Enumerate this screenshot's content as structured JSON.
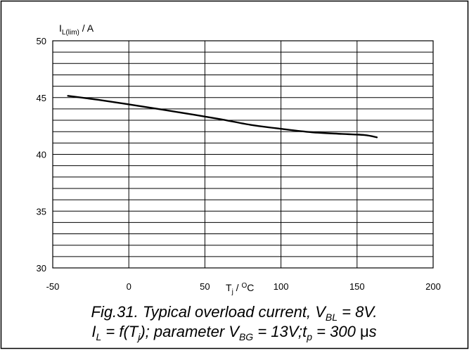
{
  "chart_data": {
    "type": "line",
    "title": "",
    "ylabel": {
      "main": "I",
      "sub": "L(lim)",
      "rest": " / A"
    },
    "xlabel": {
      "main": "T",
      "sub": "j",
      "mid": " / ",
      "sup": "O",
      "rest": "C"
    },
    "xlim": [
      -50,
      200
    ],
    "ylim": [
      30,
      50
    ],
    "x_ticks": [
      "-50",
      "0",
      "50",
      "100",
      "150",
      "200"
    ],
    "y_ticks": [
      "30",
      "35",
      "40",
      "45",
      "50"
    ],
    "x_grid_step": 50,
    "y_grid_step": 1,
    "grid": true,
    "series": [
      {
        "x": [
          -40,
          -20,
          0,
          20,
          40,
          60,
          80,
          100,
          120,
          140,
          155,
          163
        ],
        "y": [
          45.15,
          44.8,
          44.4,
          43.98,
          43.55,
          43.1,
          42.6,
          42.25,
          41.95,
          41.8,
          41.7,
          41.5
        ]
      }
    ]
  },
  "caption": {
    "line1": {
      "a": "Fig.31.   Typical overload current, V",
      "sub": "BL",
      "b": " = 8V."
    },
    "line2": {
      "a": "I",
      "sub1": "L",
      "b": " = f(T",
      "sub2": "j",
      "c": "); parameter V",
      "sub3": "BG",
      "d": " = 13V;t",
      "sub4": "p",
      "e": " = 300 ",
      "mu": "μ",
      "f": "s"
    }
  }
}
